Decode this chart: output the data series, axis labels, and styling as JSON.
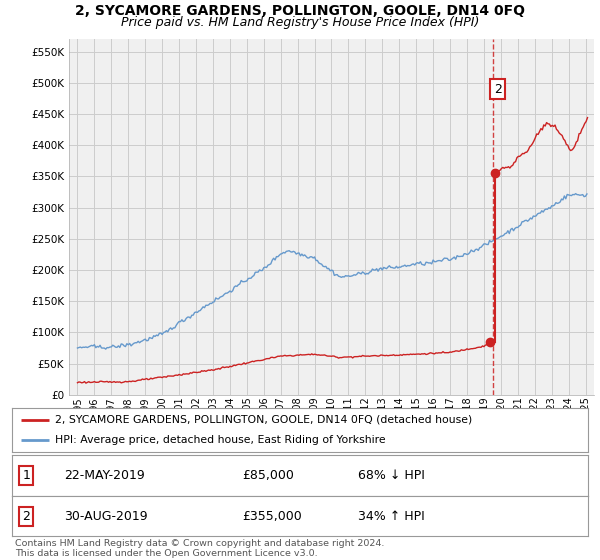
{
  "title": "2, SYCAMORE GARDENS, POLLINGTON, GOOLE, DN14 0FQ",
  "subtitle": "Price paid vs. HM Land Registry's House Price Index (HPI)",
  "legend_line1": "2, SYCAMORE GARDENS, POLLINGTON, GOOLE, DN14 0FQ (detached house)",
  "legend_line2": "HPI: Average price, detached house, East Riding of Yorkshire",
  "footer": "Contains HM Land Registry data © Crown copyright and database right 2024.\nThis data is licensed under the Open Government Licence v3.0.",
  "table": [
    {
      "num": "1",
      "date": "22-MAY-2019",
      "price": "£85,000",
      "hpi": "68% ↓ HPI"
    },
    {
      "num": "2",
      "date": "30-AUG-2019",
      "price": "£355,000",
      "hpi": "34% ↑ HPI"
    }
  ],
  "sale1_x": 2019.37,
  "sale1_y": 85000,
  "sale2_x": 2019.66,
  "sale2_y": 355000,
  "vline_x": 2019.52,
  "ylim": [
    0,
    570000
  ],
  "xlim_start": 1994.5,
  "xlim_end": 2025.5,
  "yticks": [
    0,
    50000,
    100000,
    150000,
    200000,
    250000,
    300000,
    350000,
    400000,
    450000,
    500000,
    550000
  ],
  "hpi_color": "#6699cc",
  "price_color": "#cc2222",
  "vline_color": "#cc2222",
  "bg_color": "#f0f0f0",
  "plot_bg": "#f0f0f0",
  "outer_bg": "#ffffff",
  "grid_color": "#cccccc",
  "title_fontsize": 10,
  "subtitle_fontsize": 9
}
